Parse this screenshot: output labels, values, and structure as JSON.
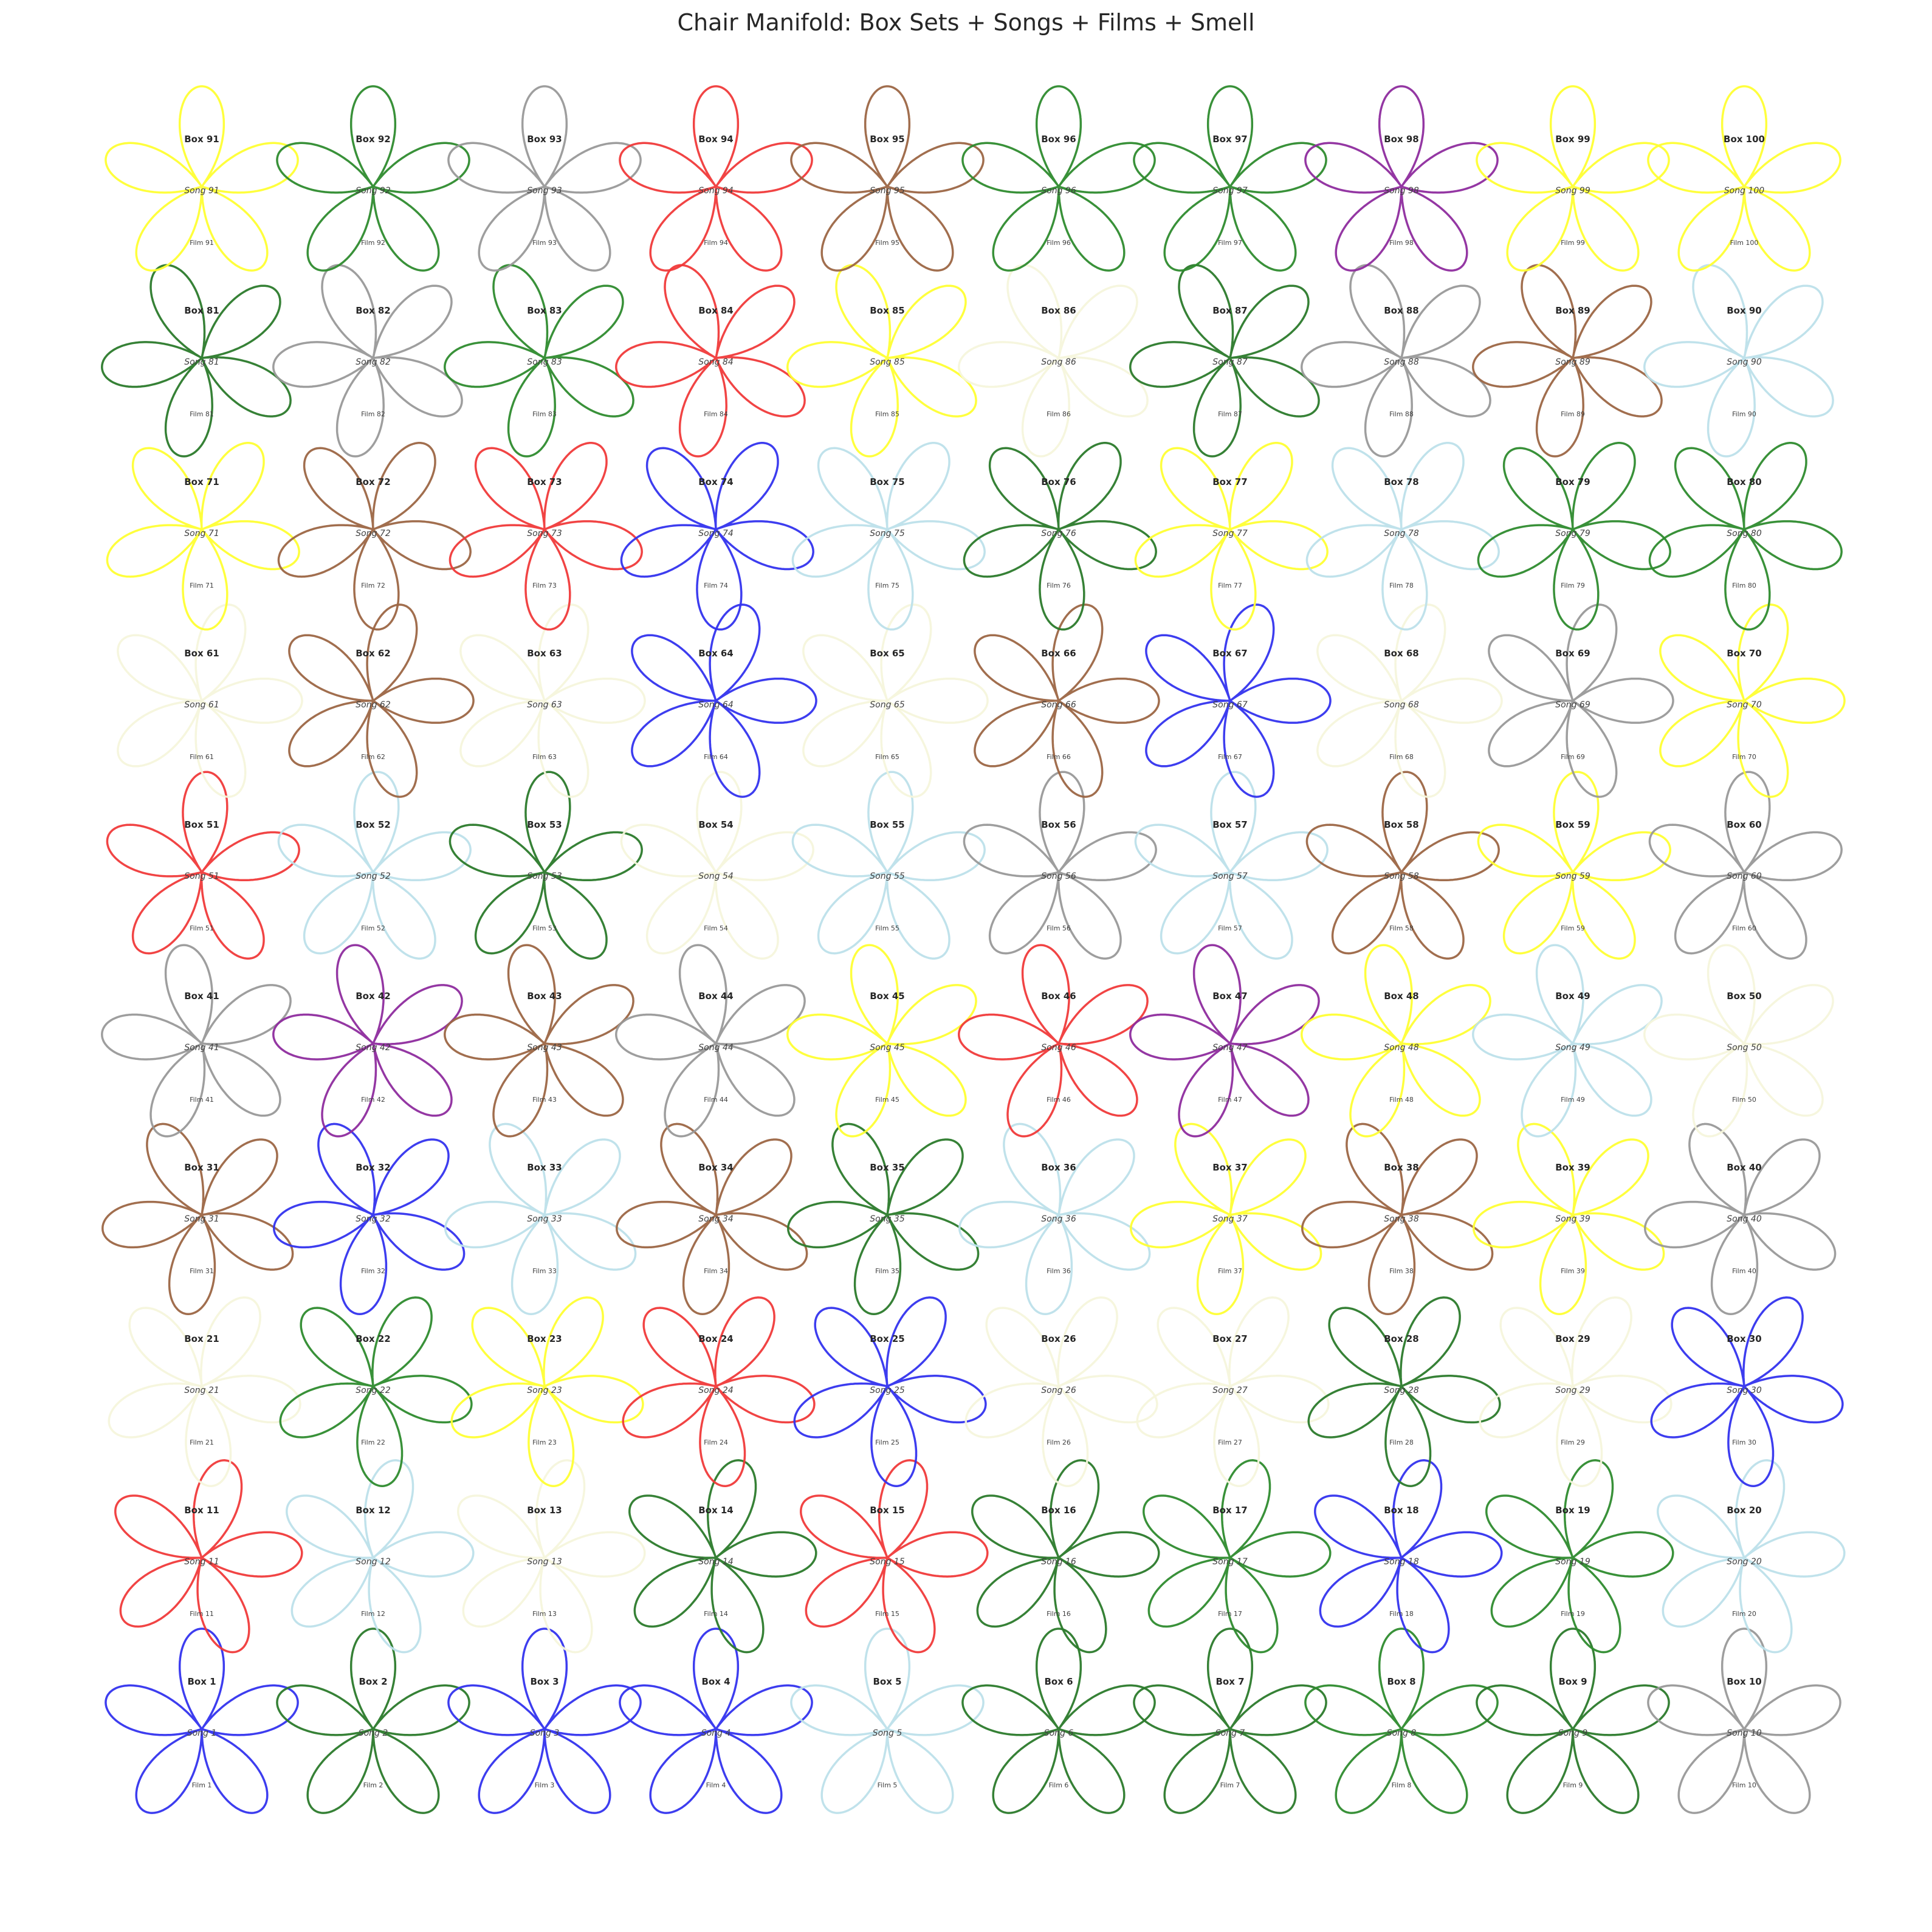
{
  "chart_data": {
    "type": "other",
    "title": "Chair Manifold: Box Sets + Songs + Films + Smell",
    "grid": false,
    "layout": {
      "columns": 10,
      "rows": 10,
      "order": "bottom-left to top-right, row by row"
    },
    "palette": {
      "blue": "#3333ee",
      "green": "#2e8b2e",
      "darkgreen": "#2b7a2b",
      "gray": "#999999",
      "lightblue": "#bde0ea",
      "red": "#f03a3a",
      "yellow": "#ffff33",
      "beige": "#f5f5dc",
      "brown": "#9c6644",
      "purple": "#8e2c9e"
    },
    "glyphs": [
      {
        "box": "Box 1",
        "song": "Song 1",
        "film": "Film 1",
        "color": "blue",
        "rot": 0
      },
      {
        "box": "Box 2",
        "song": "Song 2",
        "film": "Film 2",
        "color": "darkgreen",
        "rot": 0
      },
      {
        "box": "Box 3",
        "song": "Song 3",
        "film": "Film 3",
        "color": "blue",
        "rot": 0
      },
      {
        "box": "Box 4",
        "song": "Song 4",
        "film": "Film 4",
        "color": "blue",
        "rot": 0
      },
      {
        "box": "Box 5",
        "song": "Song 5",
        "film": "Film 5",
        "color": "lightblue",
        "rot": 0
      },
      {
        "box": "Box 6",
        "song": "Song 6",
        "film": "Film 6",
        "color": "darkgreen",
        "rot": 0
      },
      {
        "box": "Box 7",
        "song": "Song 7",
        "film": "Film 7",
        "color": "darkgreen",
        "rot": 0
      },
      {
        "box": "Box 8",
        "song": "Song 8",
        "film": "Film 8",
        "color": "green",
        "rot": 0
      },
      {
        "box": "Box 9",
        "song": "Song 9",
        "film": "Film 9",
        "color": "darkgreen",
        "rot": 0
      },
      {
        "box": "Box 10",
        "song": "Song 10",
        "film": "Film 10",
        "color": "gray",
        "rot": 0
      },
      {
        "box": "Box 11",
        "song": "Song 11",
        "film": "Film 11",
        "color": "red",
        "rot": 15
      },
      {
        "box": "Box 12",
        "song": "Song 12",
        "film": "Film 12",
        "color": "lightblue",
        "rot": 15
      },
      {
        "box": "Box 13",
        "song": "Song 13",
        "film": "Film 13",
        "color": "beige",
        "rot": 15
      },
      {
        "box": "Box 14",
        "song": "Song 14",
        "film": "Film 14",
        "color": "darkgreen",
        "rot": 15
      },
      {
        "box": "Box 15",
        "song": "Song 15",
        "film": "Film 15",
        "color": "red",
        "rot": 15
      },
      {
        "box": "Box 16",
        "song": "Song 16",
        "film": "Film 16",
        "color": "darkgreen",
        "rot": 15
      },
      {
        "box": "Box 17",
        "song": "Song 17",
        "film": "Film 17",
        "color": "green",
        "rot": 15
      },
      {
        "box": "Box 18",
        "song": "Song 18",
        "film": "Film 18",
        "color": "blue",
        "rot": 15
      },
      {
        "box": "Box 19",
        "song": "Song 19",
        "film": "Film 19",
        "color": "green",
        "rot": 15
      },
      {
        "box": "Box 20",
        "song": "Song 20",
        "film": "Film 20",
        "color": "lightblue",
        "rot": 15
      },
      {
        "box": "Box 21",
        "song": "Song 21",
        "film": "Film 21",
        "color": "beige",
        "rot": 30
      },
      {
        "box": "Box 22",
        "song": "Song 22",
        "film": "Film 22",
        "color": "green",
        "rot": 30
      },
      {
        "box": "Box 23",
        "song": "Song 23",
        "film": "Film 23",
        "color": "yellow",
        "rot": 30
      },
      {
        "box": "Box 24",
        "song": "Song 24",
        "film": "Film 24",
        "color": "red",
        "rot": 30
      },
      {
        "box": "Box 25",
        "song": "Song 25",
        "film": "Film 25",
        "color": "blue",
        "rot": 30
      },
      {
        "box": "Box 26",
        "song": "Song 26",
        "film": "Film 26",
        "color": "beige",
        "rot": 30
      },
      {
        "box": "Box 27",
        "song": "Song 27",
        "film": "Film 27",
        "color": "beige",
        "rot": 30
      },
      {
        "box": "Box 28",
        "song": "Song 28",
        "film": "Film 28",
        "color": "darkgreen",
        "rot": 30
      },
      {
        "box": "Box 29",
        "song": "Song 29",
        "film": "Film 29",
        "color": "beige",
        "rot": 30
      },
      {
        "box": "Box 30",
        "song": "Song 30",
        "film": "Film 30",
        "color": "blue",
        "rot": 30
      },
      {
        "box": "Box 31",
        "song": "Song 31",
        "film": "Film 31",
        "color": "brown",
        "rot": 45
      },
      {
        "box": "Box 32",
        "song": "Song 32",
        "film": "Film 32",
        "color": "blue",
        "rot": 45
      },
      {
        "box": "Box 33",
        "song": "Song 33",
        "film": "Film 33",
        "color": "lightblue",
        "rot": 45
      },
      {
        "box": "Box 34",
        "song": "Song 34",
        "film": "Film 34",
        "color": "brown",
        "rot": 45
      },
      {
        "box": "Box 35",
        "song": "Song 35",
        "film": "Film 35",
        "color": "darkgreen",
        "rot": 45
      },
      {
        "box": "Box 36",
        "song": "Song 36",
        "film": "Film 36",
        "color": "lightblue",
        "rot": 45
      },
      {
        "box": "Box 37",
        "song": "Song 37",
        "film": "Film 37",
        "color": "yellow",
        "rot": 45
      },
      {
        "box": "Box 38",
        "song": "Song 38",
        "film": "Film 38",
        "color": "brown",
        "rot": 45
      },
      {
        "box": "Box 39",
        "song": "Song 39",
        "film": "Film 39",
        "color": "yellow",
        "rot": 45
      },
      {
        "box": "Box 40",
        "song": "Song 40",
        "film": "Film 40",
        "color": "gray",
        "rot": 45
      },
      {
        "box": "Box 41",
        "song": "Song 41",
        "film": "Film 41",
        "color": "gray",
        "rot": 60
      },
      {
        "box": "Box 42",
        "song": "Song 42",
        "film": "Film 42",
        "color": "purple",
        "rot": 60
      },
      {
        "box": "Box 43",
        "song": "Song 43",
        "film": "Film 43",
        "color": "brown",
        "rot": 60
      },
      {
        "box": "Box 44",
        "song": "Song 44",
        "film": "Film 44",
        "color": "gray",
        "rot": 60
      },
      {
        "box": "Box 45",
        "song": "Song 45",
        "film": "Film 45",
        "color": "yellow",
        "rot": 60
      },
      {
        "box": "Box 46",
        "song": "Song 46",
        "film": "Film 46",
        "color": "red",
        "rot": 60
      },
      {
        "box": "Box 47",
        "song": "Song 47",
        "film": "Film 47",
        "color": "purple",
        "rot": 60
      },
      {
        "box": "Box 48",
        "song": "Song 48",
        "film": "Film 48",
        "color": "yellow",
        "rot": 60
      },
      {
        "box": "Box 49",
        "song": "Song 49",
        "film": "Film 49",
        "color": "lightblue",
        "rot": 60
      },
      {
        "box": "Box 50",
        "song": "Song 50",
        "film": "Film 50",
        "color": "beige",
        "rot": 60
      },
      {
        "box": "Box 51",
        "song": "Song 51",
        "film": "Film 51",
        "color": "red",
        "rot": 75
      },
      {
        "box": "Box 52",
        "song": "Song 52",
        "film": "Film 52",
        "color": "lightblue",
        "rot": 75
      },
      {
        "box": "Box 53",
        "song": "Song 53",
        "film": "Film 53",
        "color": "darkgreen",
        "rot": 75
      },
      {
        "box": "Box 54",
        "song": "Song 54",
        "film": "Film 54",
        "color": "beige",
        "rot": 75
      },
      {
        "box": "Box 55",
        "song": "Song 55",
        "film": "Film 55",
        "color": "lightblue",
        "rot": 75
      },
      {
        "box": "Box 56",
        "song": "Song 56",
        "film": "Film 56",
        "color": "gray",
        "rot": 75
      },
      {
        "box": "Box 57",
        "song": "Song 57",
        "film": "Film 57",
        "color": "lightblue",
        "rot": 75
      },
      {
        "box": "Box 58",
        "song": "Song 58",
        "film": "Film 58",
        "color": "brown",
        "rot": 75
      },
      {
        "box": "Box 59",
        "song": "Song 59",
        "film": "Film 59",
        "color": "yellow",
        "rot": 75
      },
      {
        "box": "Box 60",
        "song": "Song 60",
        "film": "Film 60",
        "color": "gray",
        "rot": 75
      },
      {
        "box": "Box 61",
        "song": "Song 61",
        "film": "Film 61",
        "color": "beige",
        "rot": 90
      },
      {
        "box": "Box 62",
        "song": "Song 62",
        "film": "Film 62",
        "color": "brown",
        "rot": 90
      },
      {
        "box": "Box 63",
        "song": "Song 63",
        "film": "Film 63",
        "color": "beige",
        "rot": 90
      },
      {
        "box": "Box 64",
        "song": "Song 64",
        "film": "Film 64",
        "color": "blue",
        "rot": 90
      },
      {
        "box": "Box 65",
        "song": "Song 65",
        "film": "Film 65",
        "color": "beige",
        "rot": 90
      },
      {
        "box": "Box 66",
        "song": "Song 66",
        "film": "Film 66",
        "color": "brown",
        "rot": 90
      },
      {
        "box": "Box 67",
        "song": "Song 67",
        "film": "Film 67",
        "color": "blue",
        "rot": 90
      },
      {
        "box": "Box 68",
        "song": "Song 68",
        "film": "Film 68",
        "color": "beige",
        "rot": 90
      },
      {
        "box": "Box 69",
        "song": "Song 69",
        "film": "Film 69",
        "color": "gray",
        "rot": 90
      },
      {
        "box": "Box 70",
        "song": "Song 70",
        "film": "Film 70",
        "color": "yellow",
        "rot": 90
      },
      {
        "box": "Box 71",
        "song": "Song 71",
        "film": "Film 71",
        "color": "yellow",
        "rot": 105
      },
      {
        "box": "Box 72",
        "song": "Song 72",
        "film": "Film 72",
        "color": "brown",
        "rot": 105
      },
      {
        "box": "Box 73",
        "song": "Song 73",
        "film": "Film 73",
        "color": "red",
        "rot": 105
      },
      {
        "box": "Box 74",
        "song": "Song 74",
        "film": "Film 74",
        "color": "blue",
        "rot": 105
      },
      {
        "box": "Box 75",
        "song": "Song 75",
        "film": "Film 75",
        "color": "lightblue",
        "rot": 105
      },
      {
        "box": "Box 76",
        "song": "Song 76",
        "film": "Film 76",
        "color": "darkgreen",
        "rot": 105
      },
      {
        "box": "Box 77",
        "song": "Song 77",
        "film": "Film 77",
        "color": "yellow",
        "rot": 105
      },
      {
        "box": "Box 78",
        "song": "Song 78",
        "film": "Film 78",
        "color": "lightblue",
        "rot": 105
      },
      {
        "box": "Box 79",
        "song": "Song 79",
        "film": "Film 79",
        "color": "green",
        "rot": 105
      },
      {
        "box": "Box 80",
        "song": "Song 80",
        "film": "Film 80",
        "color": "green",
        "rot": 105
      },
      {
        "box": "Box 81",
        "song": "Song 81",
        "film": "Film 81",
        "color": "darkgreen",
        "rot": 120
      },
      {
        "box": "Box 82",
        "song": "Song 82",
        "film": "Film 82",
        "color": "gray",
        "rot": 120
      },
      {
        "box": "Box 83",
        "song": "Song 83",
        "film": "Film 83",
        "color": "green",
        "rot": 120
      },
      {
        "box": "Box 84",
        "song": "Song 84",
        "film": "Film 84",
        "color": "red",
        "rot": 120
      },
      {
        "box": "Box 85",
        "song": "Song 85",
        "film": "Film 85",
        "color": "yellow",
        "rot": 120
      },
      {
        "box": "Box 86",
        "song": "Song 86",
        "film": "Film 86",
        "color": "beige",
        "rot": 120
      },
      {
        "box": "Box 87",
        "song": "Song 87",
        "film": "Film 87",
        "color": "darkgreen",
        "rot": 120
      },
      {
        "box": "Box 88",
        "song": "Song 88",
        "film": "Film 88",
        "color": "gray",
        "rot": 120
      },
      {
        "box": "Box 89",
        "song": "Song 89",
        "film": "Film 89",
        "color": "brown",
        "rot": 120
      },
      {
        "box": "Box 90",
        "song": "Song 90",
        "film": "Film 90",
        "color": "lightblue",
        "rot": 120
      },
      {
        "box": "Box 91",
        "song": "Song 91",
        "film": "Film 91",
        "color": "yellow",
        "rot": 0
      },
      {
        "box": "Box 92",
        "song": "Song 92",
        "film": "Film 92",
        "color": "green",
        "rot": 0
      },
      {
        "box": "Box 93",
        "song": "Song 93",
        "film": "Film 93",
        "color": "gray",
        "rot": 0
      },
      {
        "box": "Box 94",
        "song": "Song 94",
        "film": "Film 94",
        "color": "red",
        "rot": 0
      },
      {
        "box": "Box 95",
        "song": "Song 95",
        "film": "Film 95",
        "color": "brown",
        "rot": 0
      },
      {
        "box": "Box 96",
        "song": "Song 96",
        "film": "Film 96",
        "color": "green",
        "rot": 0
      },
      {
        "box": "Box 97",
        "song": "Song 97",
        "film": "Film 97",
        "color": "green",
        "rot": 0
      },
      {
        "box": "Box 98",
        "song": "Song 98",
        "film": "Film 98",
        "color": "purple",
        "rot": 0
      },
      {
        "box": "Box 99",
        "song": "Song 99",
        "film": "Film 99",
        "color": "yellow",
        "rot": 0
      },
      {
        "box": "Box 100",
        "song": "Song 100",
        "film": "Film 100",
        "color": "yellow",
        "rot": 0
      }
    ]
  }
}
